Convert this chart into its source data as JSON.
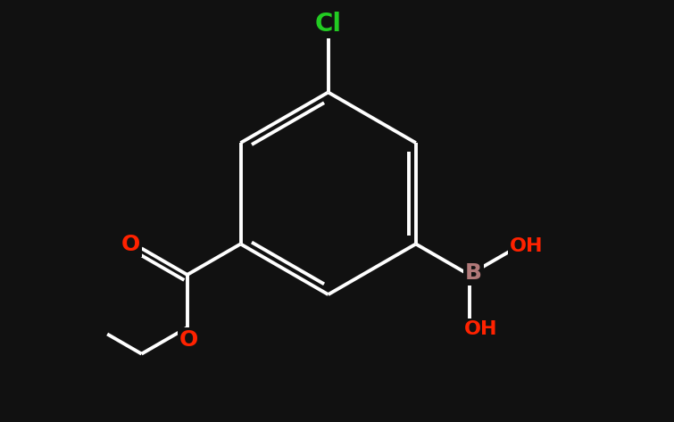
{
  "background_color": "#111111",
  "bond_color": "#ffffff",
  "bond_width": 2.8,
  "atom_colors": {
    "O": "#ff2200",
    "B": "#b07878",
    "Cl": "#22cc22",
    "default": "#ffffff"
  },
  "fontsize": 16,
  "figsize": [
    7.55,
    4.73
  ],
  "dpi": 100
}
